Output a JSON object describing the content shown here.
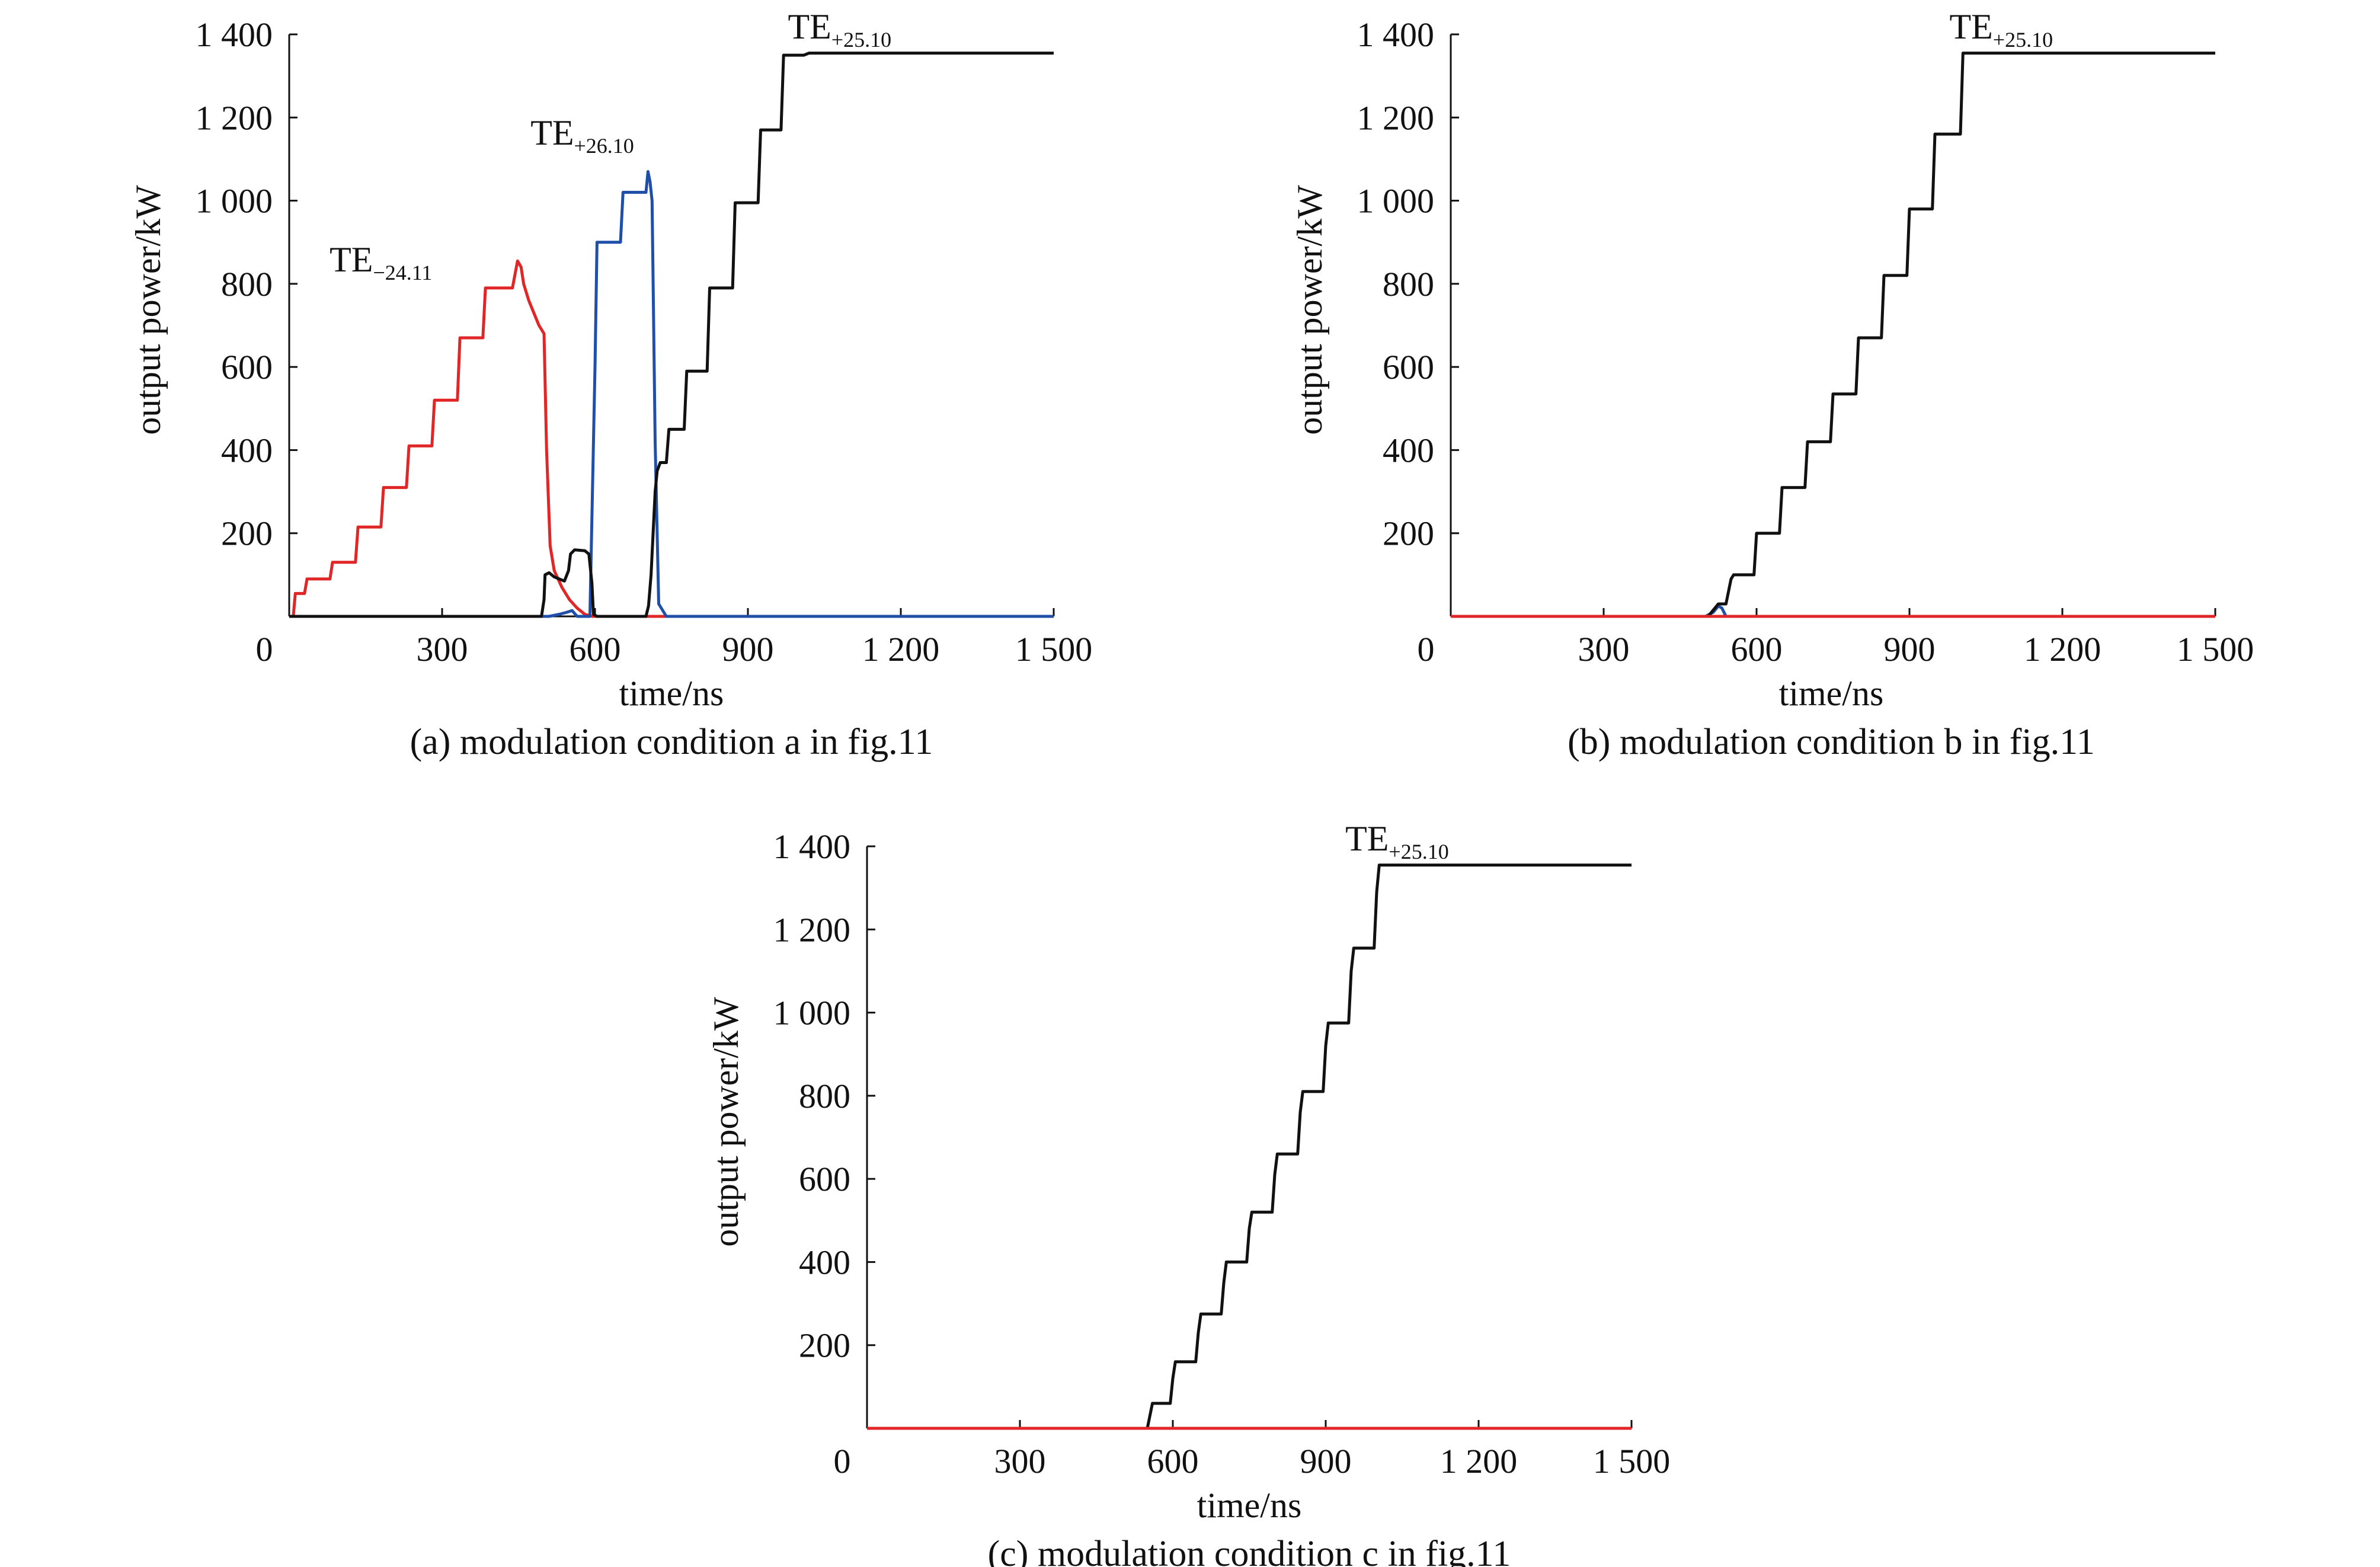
{
  "figure": {
    "panels": [
      {
        "id": "a",
        "caption": "(a) modulation condition a in fig.11",
        "xlabel": "time/ns",
        "ylabel": "output power/kW"
      },
      {
        "id": "b",
        "caption": "(b) modulation condition b in fig.11",
        "xlabel": "time/ns",
        "ylabel": "output power/kW"
      },
      {
        "id": "c",
        "caption": "(c) modulation condition c in fig.11",
        "xlabel": "time/ns",
        "ylabel": "output power/kW"
      }
    ]
  },
  "colors": {
    "black": "#111111",
    "red": "#e02626",
    "blue": "#1f4fa8"
  },
  "chart_data": [
    {
      "type": "line",
      "title": "(a) modulation condition a in fig.11",
      "xlabel": "time/ns",
      "ylabel": "output power/kW",
      "xlim": [
        0,
        1500
      ],
      "ylim": [
        0,
        1400
      ],
      "x_ticks": [
        0,
        300,
        600,
        900,
        1200,
        1500
      ],
      "x_tick_labels": [
        "0",
        "300",
        "600",
        "900",
        "1 200",
        "1 500"
      ],
      "y_ticks": [
        200,
        400,
        600,
        800,
        1000,
        1200,
        1400
      ],
      "y_tick_labels": [
        "200",
        "400",
        "600",
        "800",
        "1 000",
        "1 200",
        "1 400"
      ],
      "origin_label": "0",
      "annotations": [
        {
          "base": "TE",
          "sub": "−24.11",
          "x": 180,
          "y": 830
        },
        {
          "base": "TE",
          "sub": "+26.10",
          "x": 575,
          "y": 1135
        },
        {
          "base": "TE",
          "sub": "+25.10",
          "x": 1080,
          "y": 1390
        }
      ],
      "series": [
        {
          "name": "TE−24.11",
          "color": "#e02626",
          "x": [
            0,
            8,
            12,
            30,
            35,
            80,
            85,
            130,
            135,
            180,
            185,
            230,
            235,
            280,
            285,
            330,
            335,
            380,
            385,
            430,
            438,
            448,
            455,
            460,
            470,
            480,
            490,
            500,
            505,
            512,
            520,
            535,
            550,
            565,
            580,
            595,
            1500
          ],
          "y": [
            0,
            0,
            55,
            55,
            90,
            90,
            130,
            130,
            215,
            215,
            310,
            310,
            410,
            410,
            520,
            520,
            670,
            670,
            790,
            790,
            790,
            855,
            840,
            800,
            760,
            730,
            700,
            680,
            400,
            170,
            110,
            70,
            40,
            20,
            5,
            0,
            0
          ]
        },
        {
          "name": "TE+26.10",
          "color": "#1f4fa8",
          "x": [
            0,
            510,
            530,
            545,
            555,
            565,
            590,
            600,
            604,
            650,
            655,
            700,
            704,
            708,
            712,
            718,
            725,
            740,
            1500
          ],
          "y": [
            0,
            0,
            5,
            10,
            14,
            0,
            0,
            600,
            900,
            900,
            1020,
            1020,
            1070,
            1045,
            1000,
            420,
            30,
            0,
            0
          ]
        },
        {
          "name": "TE+25.10",
          "color": "#111111",
          "x": [
            0,
            495,
            500,
            502,
            510,
            520,
            530,
            540,
            548,
            552,
            560,
            580,
            588,
            594,
            597,
            604,
            700,
            705,
            710,
            718,
            722,
            728,
            740,
            745,
            775,
            780,
            820,
            825,
            870,
            875,
            920,
            925,
            965,
            970,
            1010,
            1020,
            1500
          ],
          "y": [
            0,
            0,
            40,
            100,
            105,
            95,
            90,
            85,
            110,
            150,
            160,
            158,
            150,
            80,
            5,
            0,
            0,
            25,
            100,
            300,
            350,
            370,
            370,
            450,
            450,
            590,
            590,
            790,
            790,
            995,
            995,
            1170,
            1170,
            1350,
            1350,
            1355,
            1355
          ]
        }
      ]
    },
    {
      "type": "line",
      "title": "(b) modulation condition b in fig.11",
      "xlabel": "time/ns",
      "ylabel": "output power/kW",
      "xlim": [
        0,
        1500
      ],
      "ylim": [
        0,
        1400
      ],
      "x_ticks": [
        0,
        300,
        600,
        900,
        1200,
        1500
      ],
      "x_tick_labels": [
        "0",
        "300",
        "600",
        "900",
        "1 200",
        "1 500"
      ],
      "y_ticks": [
        200,
        400,
        600,
        800,
        1000,
        1200,
        1400
      ],
      "y_tick_labels": [
        "200",
        "400",
        "600",
        "800",
        "1 000",
        "1 200",
        "1 400"
      ],
      "origin_label": "0",
      "annotations": [
        {
          "base": "TE",
          "sub": "+25.10",
          "x": 1080,
          "y": 1390
        }
      ],
      "series": [
        {
          "name": "blue",
          "color": "#1f4fa8",
          "x": [
            0,
            500,
            515,
            525,
            532,
            540,
            1500
          ],
          "y": [
            0,
            0,
            10,
            25,
            20,
            0,
            0
          ]
        },
        {
          "name": "TE+25.10",
          "color": "#111111",
          "x": [
            0,
            505,
            515,
            525,
            540,
            550,
            555,
            595,
            600,
            645,
            650,
            695,
            700,
            745,
            750,
            795,
            800,
            845,
            850,
            895,
            900,
            945,
            950,
            1000,
            1005,
            1500
          ],
          "y": [
            0,
            0,
            15,
            30,
            30,
            90,
            100,
            100,
            200,
            200,
            310,
            310,
            420,
            420,
            535,
            535,
            670,
            670,
            820,
            820,
            980,
            980,
            1160,
            1160,
            1355,
            1355
          ]
        },
        {
          "name": "red",
          "color": "#e02626",
          "x": [
            0,
            1500
          ],
          "y": [
            0,
            0
          ]
        }
      ]
    },
    {
      "type": "line",
      "title": "(c) modulation condition c in fig.11",
      "xlabel": "time/ns",
      "ylabel": "output power/kW",
      "xlim": [
        0,
        1500
      ],
      "ylim": [
        0,
        1400
      ],
      "x_ticks": [
        0,
        300,
        600,
        900,
        1200,
        1500
      ],
      "x_tick_labels": [
        "0",
        "300",
        "600",
        "900",
        "1 200",
        "1 500"
      ],
      "y_ticks": [
        200,
        400,
        600,
        800,
        1000,
        1200,
        1400
      ],
      "y_tick_labels": [
        "200",
        "400",
        "600",
        "800",
        "1 000",
        "1 200",
        "1 400"
      ],
      "origin_label": "0",
      "annotations": [
        {
          "base": "TE",
          "sub": "+25.10",
          "x": 1040,
          "y": 1390
        }
      ],
      "series": [
        {
          "name": "TE+25.10",
          "color": "#111111",
          "x": [
            0,
            550,
            560,
            595,
            600,
            605,
            645,
            650,
            655,
            695,
            700,
            705,
            745,
            750,
            755,
            795,
            800,
            805,
            845,
            850,
            855,
            895,
            900,
            905,
            945,
            950,
            955,
            995,
            1000,
            1005,
            1500
          ],
          "y": [
            0,
            0,
            60,
            60,
            120,
            160,
            160,
            230,
            275,
            275,
            350,
            400,
            400,
            480,
            520,
            520,
            610,
            660,
            660,
            760,
            810,
            810,
            920,
            975,
            975,
            1100,
            1155,
            1155,
            1290,
            1355,
            1355
          ]
        },
        {
          "name": "red",
          "color": "#e02626",
          "x": [
            0,
            1500
          ],
          "y": [
            0,
            0
          ]
        }
      ]
    }
  ]
}
